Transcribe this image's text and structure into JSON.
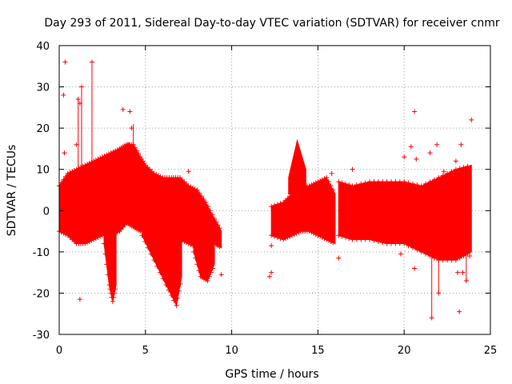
{
  "chart_data": {
    "type": "scatter",
    "title": "Day 293 of 2011, Sidereal Day-to-day VTEC variation (SDTVAR) for receiver cnmr",
    "xlabel": "GPS time / hours",
    "ylabel": "SDTVAR / TECUs",
    "xlim": [
      0,
      25
    ],
    "ylim": [
      -30,
      40
    ],
    "xticks": [
      0,
      5,
      10,
      15,
      20,
      25
    ],
    "yticks": [
      -30,
      -20,
      -10,
      0,
      10,
      20,
      30,
      40
    ],
    "grid": true,
    "marker": "+",
    "series": [
      {
        "name": "SDTVAR",
        "color": "#ff0000",
        "envelope": {
          "x": [
            0.0,
            0.5,
            1.0,
            1.5,
            2.0,
            2.5,
            3.0,
            3.5,
            3.9,
            4.3,
            4.7,
            5.0,
            5.5,
            6.0,
            6.5,
            7.0,
            7.5,
            8.0,
            8.5,
            9.0,
            9.4
          ],
          "upper": [
            6,
            9,
            10,
            11,
            12,
            13,
            14,
            15,
            16,
            16,
            13,
            11,
            9,
            8,
            8,
            8,
            6,
            5,
            2,
            -2,
            -5
          ],
          "lower": [
            -5,
            -6,
            -8,
            -8,
            -7,
            -6,
            -6,
            -5,
            -3,
            -4,
            -5,
            -4,
            -4,
            -5,
            -6,
            -7,
            -8,
            -9,
            -9,
            -8,
            -9
          ]
        },
        "dips": [
          {
            "x": [
              2.6,
              2.9,
              3.1,
              3.3
            ],
            "lower": [
              -8,
              -18,
              -22,
              -18
            ]
          },
          {
            "x": [
              4.8,
              5.5,
              6.2,
              6.8,
              7.1
            ],
            "lower": [
              -6,
              -12,
              -18,
              -23,
              -16
            ]
          },
          {
            "x": [
              7.8,
              8.2,
              8.6,
              9.0
            ],
            "lower": [
              -10,
              -16,
              -17,
              -13
            ]
          }
        ],
        "bumps": [
          {
            "x": [
              3.7,
              4.0,
              4.3
            ],
            "upper": [
              14,
              16.5,
              15
            ]
          },
          {
            "x": [
              13.3,
              13.8,
              14.3
            ],
            "upper": [
              8,
              17,
              10
            ]
          }
        ],
        "segments": [
          {
            "x": [
              12.3,
              13.0,
              13.5,
              14.0,
              14.5,
              15.0,
              15.5,
              16.0
            ],
            "upper": [
              1,
              2,
              4,
              6,
              6,
              7,
              8,
              4
            ],
            "lower": [
              -6,
              -7,
              -6,
              -5,
              -5,
              -6,
              -7,
              -8
            ]
          },
          {
            "x": [
              16.2,
              17.0,
              18.0,
              19.0,
              20.0,
              21.0,
              22.0,
              23.0,
              23.9
            ],
            "upper": [
              7,
              6,
              7,
              7,
              7,
              6,
              8,
              10,
              11
            ],
            "lower": [
              -6,
              -7,
              -7,
              -8,
              -8,
              -10,
              -12,
              -12,
              -10
            ]
          }
        ],
        "outliers": [
          {
            "x": 0.25,
            "y": 28
          },
          {
            "x": 0.35,
            "y": 36
          },
          {
            "x": 0.3,
            "y": 14
          },
          {
            "x": 1.1,
            "y": 27
          },
          {
            "x": 1.2,
            "y": 26
          },
          {
            "x": 1.3,
            "y": 30
          },
          {
            "x": 1.2,
            "y": -21.5
          },
          {
            "x": 1.9,
            "y": 36
          },
          {
            "x": 1.0,
            "y": 16
          },
          {
            "x": 3.7,
            "y": 24.5
          },
          {
            "x": 4.1,
            "y": 24
          },
          {
            "x": 4.2,
            "y": 20
          },
          {
            "x": 7.5,
            "y": 9.5
          },
          {
            "x": 8.5,
            "y": -16
          },
          {
            "x": 9.4,
            "y": -15.5
          },
          {
            "x": 12.2,
            "y": -16
          },
          {
            "x": 12.3,
            "y": -15
          },
          {
            "x": 12.3,
            "y": -8.5
          },
          {
            "x": 13.2,
            "y": 2
          },
          {
            "x": 13.5,
            "y": 3.5
          },
          {
            "x": 15.8,
            "y": 9
          },
          {
            "x": 16.2,
            "y": -11.5
          },
          {
            "x": 17.0,
            "y": 10
          },
          {
            "x": 18.3,
            "y": -4.5
          },
          {
            "x": 19.8,
            "y": -10.5
          },
          {
            "x": 20.0,
            "y": 13
          },
          {
            "x": 20.4,
            "y": 15.5
          },
          {
            "x": 20.6,
            "y": 24
          },
          {
            "x": 20.7,
            "y": 12.5
          },
          {
            "x": 20.6,
            "y": -14
          },
          {
            "x": 21.5,
            "y": 14
          },
          {
            "x": 21.6,
            "y": -26
          },
          {
            "x": 21.9,
            "y": 16
          },
          {
            "x": 22.3,
            "y": 9.5
          },
          {
            "x": 22.0,
            "y": -20
          },
          {
            "x": 22.2,
            "y": -10
          },
          {
            "x": 23.0,
            "y": 12
          },
          {
            "x": 23.1,
            "y": -15
          },
          {
            "x": 23.2,
            "y": -24.5
          },
          {
            "x": 23.3,
            "y": 16
          },
          {
            "x": 23.4,
            "y": -15
          },
          {
            "x": 23.6,
            "y": -17
          },
          {
            "x": 23.9,
            "y": 22
          },
          {
            "x": 23.8,
            "y": -11
          }
        ],
        "spikes": [
          {
            "x": 1.1,
            "y0": 5,
            "y1": 27
          },
          {
            "x": 1.3,
            "y0": 5,
            "y1": 30
          },
          {
            "x": 1.9,
            "y0": 8,
            "y1": 36
          },
          {
            "x": 4.3,
            "y0": 14,
            "y1": 21
          },
          {
            "x": 21.6,
            "y0": -10,
            "y1": -26
          },
          {
            "x": 22.0,
            "y0": -10,
            "y1": -20
          },
          {
            "x": 23.6,
            "y0": -10,
            "y1": -17
          }
        ]
      }
    ]
  }
}
